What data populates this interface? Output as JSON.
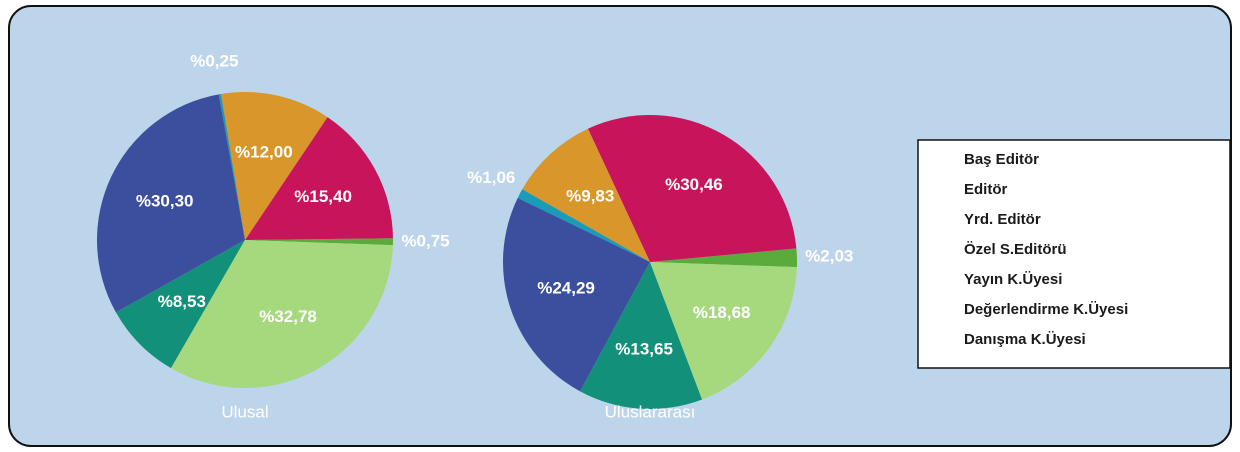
{
  "chart_data": [
    {
      "type": "pie",
      "title": "Ulusal",
      "values": [
        0.75,
        15.4,
        12.0,
        0.25,
        30.3,
        8.53,
        32.78
      ],
      "value_labels": [
        "%0,75",
        "%15,40",
        "%12,00",
        "%0,25",
        "%30,30",
        "%8,53",
        "%32,78"
      ]
    },
    {
      "type": "pie",
      "title": "Uluslararası",
      "values": [
        2.03,
        30.46,
        9.83,
        1.06,
        24.29,
        13.65,
        18.68
      ],
      "value_labels": [
        "%2,03",
        "%30,46",
        "%9,83",
        "%1,06",
        "%24,29",
        "%13,65",
        "%18,68"
      ]
    }
  ],
  "legend": {
    "categories": [
      "Baş Editör",
      "Editör",
      "Yrd. Editör",
      "Özel S.Editörü",
      "Yayın K.Üyesi",
      "Değerlendirme K.Üyesi",
      "Danışma K.Üyesi"
    ],
    "colors": [
      "#5aab3c",
      "#c8145a",
      "#d9962a",
      "#1a9bb8",
      "#3c4f9e",
      "#12907a",
      "#a6d87e"
    ]
  }
}
